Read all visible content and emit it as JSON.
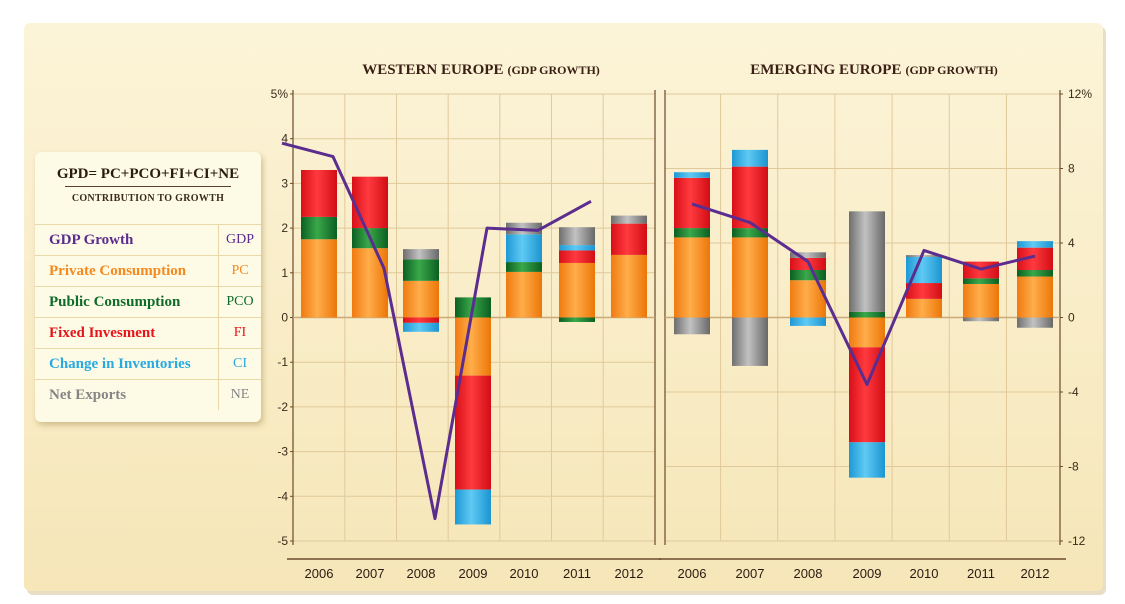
{
  "legend": {
    "formula": "GPD= PC+PCO+FI+CI+NE",
    "subtitle": "CONTRIBUTION TO GROWTH",
    "items": [
      {
        "label": "GDP Growth",
        "abbr": "GDP",
        "color": "#5b2d8e"
      },
      {
        "label": "Private Consumption",
        "abbr": "PC",
        "color": "#f5891e"
      },
      {
        "label": "Public Consumption",
        "abbr": "PCO",
        "color": "#0f6b2a"
      },
      {
        "label": "Fixed Invesment",
        "abbr": "FI",
        "color": "#e8141b"
      },
      {
        "label": "Change in Inventories",
        "abbr": "CI",
        "color": "#29a9e1"
      },
      {
        "label": "Net Exports",
        "abbr": "NE",
        "color": "#858585"
      }
    ]
  },
  "chart_data": [
    {
      "type": "bar",
      "stacked": true,
      "title": "WESTERN EUROPE",
      "subtitle": "(GDP GROWTH)",
      "categories": [
        "2006",
        "2007",
        "2008",
        "2009",
        "2010",
        "2011",
        "2012"
      ],
      "ylim": [
        -5,
        5
      ],
      "yticks": [
        "5%",
        "4",
        "3",
        "2",
        "1",
        "0",
        "-1",
        "-2",
        "-3",
        "-4",
        "-5"
      ],
      "y_axis_side": "left",
      "series": [
        {
          "name": "Private Consumption",
          "values": [
            1.75,
            1.55,
            0.82,
            -1.3,
            1.02,
            1.22,
            1.4
          ]
        },
        {
          "name": "Public Consumption",
          "values": [
            0.5,
            0.45,
            0.48,
            0.45,
            0.22,
            -0.1,
            0.0
          ]
        },
        {
          "name": "Fixed Invesment",
          "values": [
            1.05,
            1.15,
            -0.12,
            -2.55,
            0.0,
            0.28,
            0.7
          ]
        },
        {
          "name": "Change in Inventories",
          "values": [
            0.0,
            0.0,
            -0.2,
            -0.78,
            0.62,
            0.12,
            0.0
          ]
        },
        {
          "name": "Net Exports",
          "values": [
            0.0,
            0.0,
            0.23,
            0.0,
            0.26,
            0.4,
            0.18
          ]
        }
      ],
      "line": {
        "name": "GDP Growth",
        "start": 3.9,
        "values": [
          3.6,
          1.1,
          -4.5,
          2.0,
          1.95,
          2.6
        ]
      }
    },
    {
      "type": "bar",
      "stacked": true,
      "title": "EMERGING EUROPE",
      "subtitle": "(GDP GROWTH)",
      "categories": [
        "2006",
        "2007",
        "2008",
        "2009",
        "2010",
        "2011",
        "2012"
      ],
      "ylim": [
        -12,
        12
      ],
      "yticks": [
        "12%",
        "8",
        "4",
        "0",
        "-4",
        "-8",
        "-12"
      ],
      "y_axis_side": "right",
      "series": [
        {
          "name": "Private Consumption",
          "values": [
            4.3,
            4.3,
            2.0,
            -1.6,
            1.0,
            1.8,
            2.2
          ]
        },
        {
          "name": "Public Consumption",
          "values": [
            0.5,
            0.5,
            0.55,
            0.3,
            0.0,
            0.3,
            0.35
          ]
        },
        {
          "name": "Fixed Invesment",
          "values": [
            2.7,
            3.3,
            0.65,
            -5.1,
            0.85,
            0.9,
            1.2
          ]
        },
        {
          "name": "Change in Inventories",
          "values": [
            0.3,
            0.9,
            -0.45,
            -1.9,
            1.4,
            0.0,
            0.35
          ]
        },
        {
          "name": "Net Exports",
          "values": [
            -0.9,
            -2.6,
            0.3,
            5.4,
            0.1,
            -0.2,
            -0.55
          ]
        }
      ],
      "line": {
        "name": "GDP Growth",
        "values": [
          6.1,
          5.1,
          3.0,
          -3.6,
          3.6,
          2.6,
          3.3
        ]
      }
    }
  ]
}
